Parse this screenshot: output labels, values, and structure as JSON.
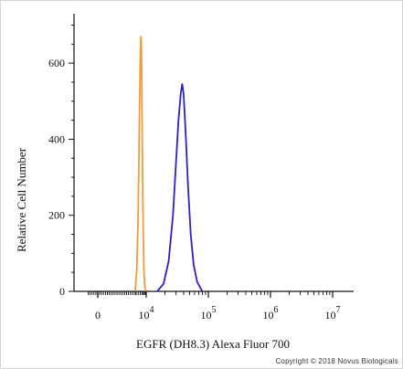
{
  "chart_data": {
    "type": "line",
    "xlabel": "EGFR (DH8.3) Alexa Fluor 700",
    "ylabel": "Relative Cell Number",
    "xscale": "biexponential",
    "x_tick_labels": [
      {
        "value": 0,
        "base": "0",
        "exp": ""
      },
      {
        "value": 10000,
        "base": "10",
        "exp": "4"
      },
      {
        "value": 100000,
        "base": "10",
        "exp": "5"
      },
      {
        "value": 1000000,
        "base": "10",
        "exp": "6"
      },
      {
        "value": 10000000,
        "base": "10",
        "exp": "7"
      }
    ],
    "y_ticks": [
      0,
      200,
      400,
      600
    ],
    "ylim": [
      0,
      730
    ],
    "grid": false,
    "legend": "none",
    "series": [
      {
        "color": "#f39a3a",
        "x": [
          2800,
          3400,
          3900,
          4300,
          4700,
          5100,
          5400,
          5700,
          6000,
          6300,
          6700,
          7200,
          7800,
          8500,
          9500
        ],
        "y": [
          0,
          60,
          180,
          340,
          500,
          620,
          670,
          660,
          560,
          420,
          260,
          130,
          50,
          15,
          0
        ]
      },
      {
        "color": "#2a22c8",
        "x": [
          15000,
          19000,
          23000,
          27000,
          30000,
          33000,
          36000,
          38000,
          40000,
          43000,
          47000,
          52000,
          58000,
          66000,
          80000
        ],
        "y": [
          0,
          20,
          80,
          200,
          330,
          450,
          520,
          545,
          520,
          420,
          280,
          150,
          70,
          25,
          0
        ]
      }
    ]
  },
  "footer": {
    "copyright": "Copyright © 2018 Novus Biologicals"
  }
}
